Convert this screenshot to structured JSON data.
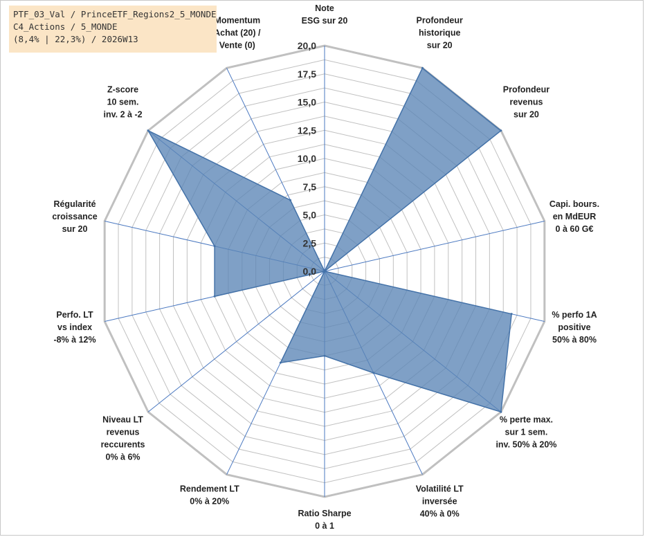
{
  "info": {
    "line1": "PTF_03_Val / PrinceETF_Regions2_5_MONDE",
    "line2": "C4_Actions / 5_MONDE",
    "line3": "(8,4% | 22,3%) / 2026W13"
  },
  "chart_data": {
    "type": "radar",
    "scale": {
      "min": 0,
      "max": 20,
      "step": 2.5
    },
    "tick_labels": [
      "0,0",
      "2,5",
      "5,0",
      "7,5",
      "10,0",
      "12,5",
      "15,0",
      "17,5",
      "20,0"
    ],
    "grid": true,
    "colors": {
      "fill": "#5b85b6",
      "stroke": "#4472a8",
      "grid": "#c0c0c0",
      "spoke": "#4a78c0"
    },
    "axes": [
      {
        "lines": [
          "Note",
          "ESG sur 20"
        ],
        "value": 0
      },
      {
        "lines": [
          "Profondeur",
          "historique",
          "sur 20"
        ],
        "value": 20
      },
      {
        "lines": [
          "Profondeur",
          "revenus",
          "sur 20"
        ],
        "value": 20
      },
      {
        "lines": [
          "Capi. bours.",
          "en MdEUR",
          "0 à 60 G€"
        ],
        "value": 0
      },
      {
        "lines": [
          "% perfo 1A",
          "positive",
          "50% à 80%"
        ],
        "value": 17
      },
      {
        "lines": [
          "% perte max.",
          "sur 1 sem.",
          "inv. 50% à 20%"
        ],
        "value": 20
      },
      {
        "lines": [
          "Volatilité LT",
          "inversée",
          "40% à 0%"
        ],
        "value": 10
      },
      {
        "lines": [
          "Ratio Sharpe",
          "0 à 1"
        ],
        "value": 7.5
      },
      {
        "lines": [
          "Rendement LT",
          "0% à 20%"
        ],
        "value": 9
      },
      {
        "lines": [
          "Niveau LT",
          "revenus",
          "reccurents",
          "0% à 6%"
        ],
        "value": 0
      },
      {
        "lines": [
          "Perfo. LT",
          "vs index",
          "-8% à 12%"
        ],
        "value": 10
      },
      {
        "lines": [
          "Régularité",
          "croissance",
          "sur 20"
        ],
        "value": 10
      },
      {
        "lines": [
          "Z-score",
          "10 sem.",
          "inv. 2 à -2"
        ],
        "value": 20
      },
      {
        "lines": [
          "Momentum",
          "Achat (20) /",
          "Vente (0)"
        ],
        "value": 7
      }
    ]
  }
}
